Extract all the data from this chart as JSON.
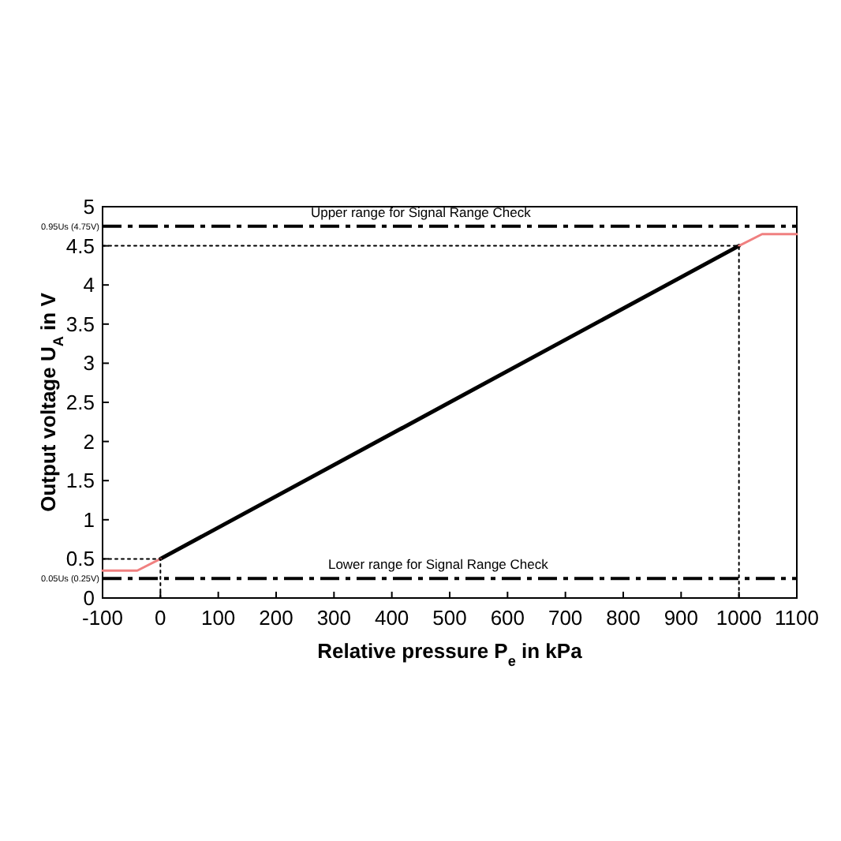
{
  "chart_data": {
    "type": "line",
    "xlabel": "Relative pressure P$_{e}$ in kPa",
    "ylabel": "Output voltage U$_{A}$ in V",
    "xlim": [
      -100,
      1100
    ],
    "xticks": [
      -100,
      0,
      100,
      200,
      300,
      400,
      500,
      600,
      700,
      800,
      900,
      1000,
      1100
    ],
    "ylim": [
      0,
      5
    ],
    "yticks": [
      0,
      0.5,
      1,
      1.5,
      2,
      2.5,
      3,
      3.5,
      4,
      4.5,
      5
    ],
    "grid": false,
    "series": [
      {
        "color": "#000000",
        "x": [
          0,
          1000
        ],
        "values": [
          0.5,
          4.5
        ],
        "line_style": "solid"
      },
      {
        "color": "#f08080",
        "x": [
          -100,
          -40,
          0
        ],
        "values": [
          0.35,
          0.35,
          0.5
        ],
        "line_style": "solid"
      },
      {
        "color": "#f08080",
        "x": [
          1000,
          1040,
          1100
        ],
        "values": [
          4.5,
          4.65,
          4.65
        ],
        "line_style": "solid"
      },
      {
        "color": "#000000",
        "x": [
          -100,
          0,
          0
        ],
        "values": [
          0.5,
          0.5,
          0
        ],
        "line_style": "dotted"
      },
      {
        "color": "#000000",
        "x": [
          -100,
          1000,
          1000
        ],
        "values": [
          4.5,
          4.5,
          0
        ],
        "line_style": "dotted"
      }
    ],
    "ref_lines": [
      {
        "axis": "y",
        "value": 4.75,
        "label": "0.95Us (4.75V)",
        "color": "#000000",
        "line_style": "dashdot"
      },
      {
        "axis": "y",
        "value": 0.25,
        "label": "0.05Us (0.25V)",
        "color": "#000000",
        "line_style": "dashdot"
      }
    ],
    "annotations": [
      {
        "text": "Upper range for Signal Range Check",
        "x": 450,
        "y": 4.75
      },
      {
        "text": "Lower range for Signal Range Check",
        "x": 480,
        "y": 0.25
      }
    ]
  }
}
